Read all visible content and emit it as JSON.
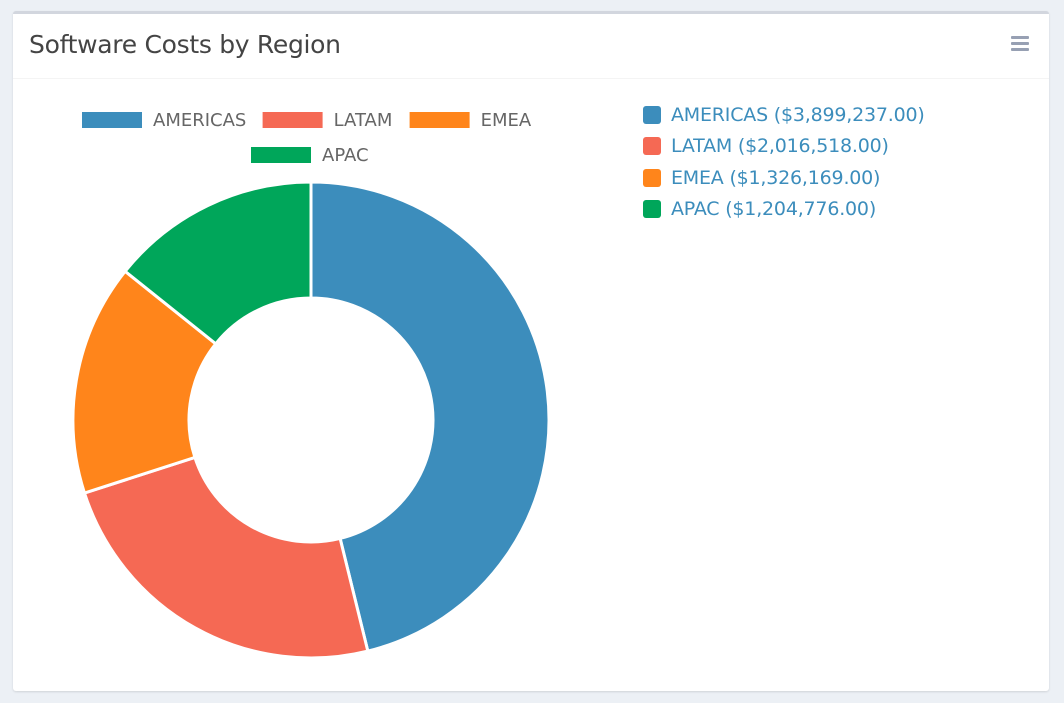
{
  "card": {
    "title": "Software Costs by Region",
    "menu_icon": "hamburger-menu-icon"
  },
  "chart_data": {
    "type": "pie",
    "variant": "doughnut",
    "title": "Software Costs by Region",
    "categories": [
      "AMERICAS",
      "LATAM",
      "EMEA",
      "APAC"
    ],
    "values": [
      3899237,
      2016518,
      1326169,
      1204776
    ],
    "colors": [
      "#3c8dbc",
      "#f56954",
      "#ff851b",
      "#00a65a"
    ],
    "legend_position": "top",
    "currency": "$"
  },
  "side_legend": [
    {
      "label": "AMERICAS ($3,899,237.00)",
      "color": "#3c8dbc"
    },
    {
      "label": "LATAM ($2,016,518.00)",
      "color": "#f56954"
    },
    {
      "label": "EMEA ($1,326,169.00)",
      "color": "#ff851b"
    },
    {
      "label": "APAC ($1,204,776.00)",
      "color": "#00a65a"
    }
  ]
}
